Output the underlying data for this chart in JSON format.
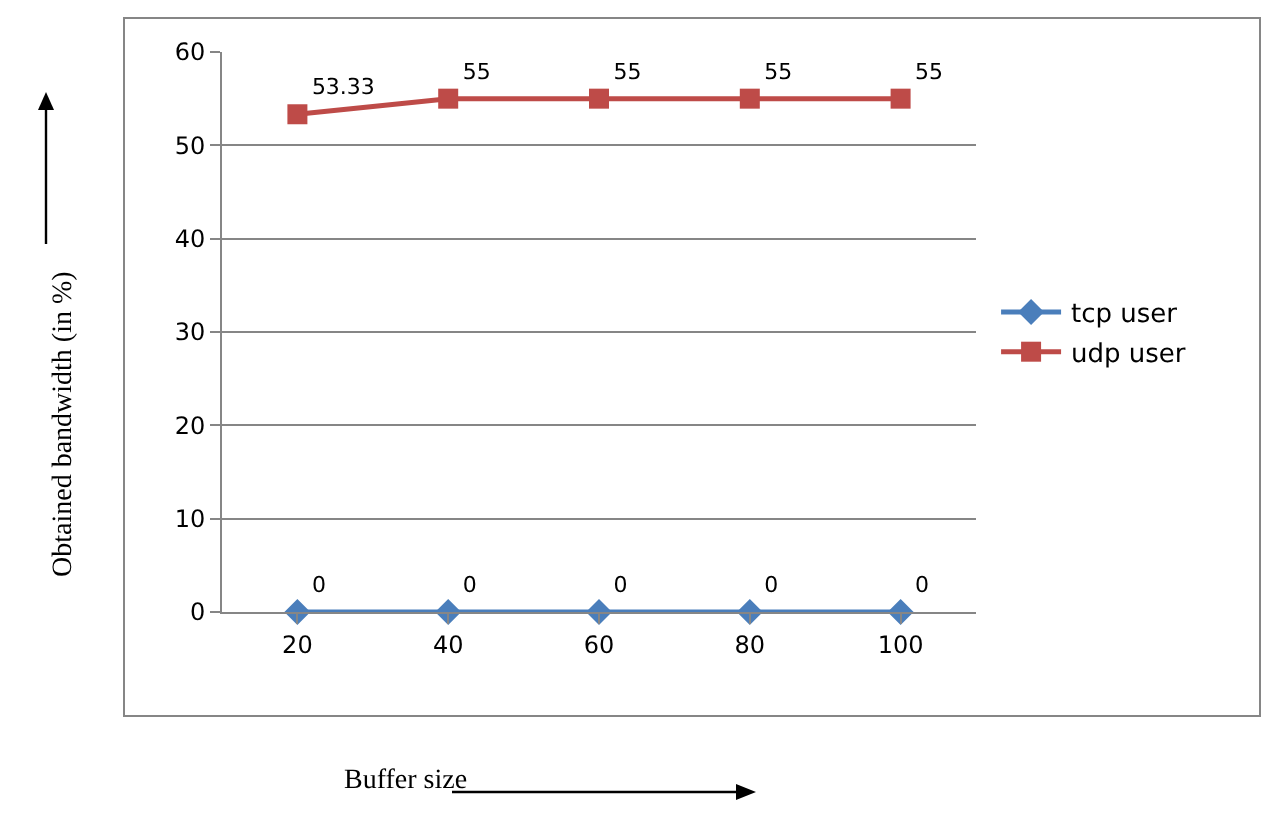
{
  "chart_data": {
    "type": "line",
    "xlabel": "Buffer size",
    "ylabel": "Obtained bandwidth (in %)",
    "categories": [
      "20",
      "40",
      "60",
      "80",
      "100"
    ],
    "series": [
      {
        "name": "tcp user",
        "color": "#4a7ebb",
        "marker": "diamond",
        "values": [
          0,
          0,
          0,
          0,
          0
        ]
      },
      {
        "name": "udp user",
        "color": "#be4b48",
        "marker": "square",
        "values": [
          53.33,
          55,
          55,
          55,
          55
        ]
      }
    ],
    "ylim": [
      0,
      60
    ],
    "yticks": [
      0,
      10,
      20,
      30,
      40,
      50,
      60
    ],
    "grid": "y",
    "legend": "right",
    "data_labels": true,
    "line_style": "solid"
  }
}
